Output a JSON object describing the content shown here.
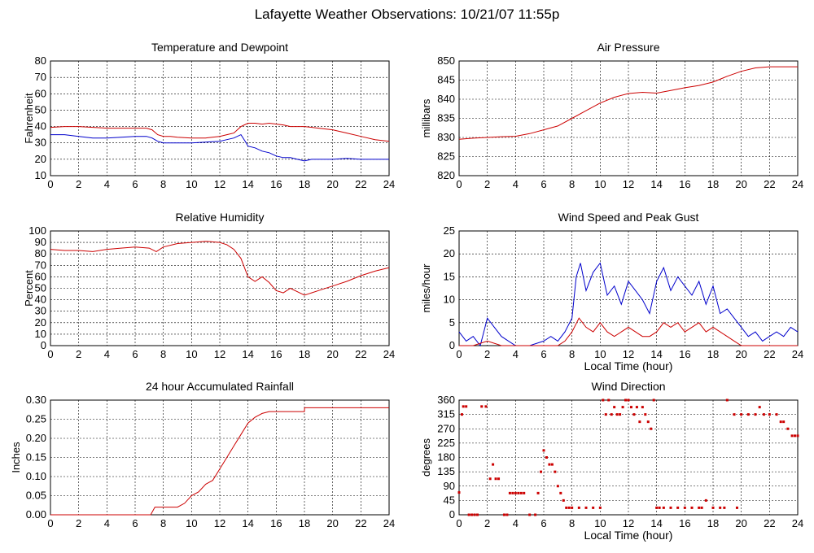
{
  "page": {
    "title": "Lafayette Weather Observations: 10/21/07 11:55p"
  },
  "chart_data": [
    {
      "id": "temp",
      "type": "line",
      "title": "Temperature and Dewpoint",
      "xlabel": "",
      "ylabel": "Fahrenheit",
      "xlim": [
        0,
        24
      ],
      "ylim": [
        10,
        80
      ],
      "xticks": [
        0,
        2,
        4,
        6,
        8,
        10,
        12,
        14,
        16,
        18,
        20,
        22,
        24
      ],
      "yticks": [
        10,
        20,
        30,
        40,
        50,
        60,
        70,
        80
      ],
      "grid": true,
      "series": [
        {
          "color": "#cc0000",
          "x": [
            0,
            1,
            2,
            3,
            4,
            5,
            6,
            6.8,
            7.2,
            7.6,
            8,
            8.5,
            9,
            10,
            11,
            12,
            12.5,
            13,
            13.5,
            14,
            14.5,
            15,
            15.5,
            16,
            16.5,
            17,
            17.5,
            18,
            19,
            20,
            21,
            22,
            23,
            24
          ],
          "y": [
            39.5,
            40,
            40,
            39.5,
            39,
            39,
            39,
            39,
            38,
            35,
            34,
            34,
            33.5,
            33,
            33,
            34,
            35,
            36,
            40,
            42,
            42,
            41.5,
            42,
            41.5,
            41,
            40,
            40,
            40,
            39,
            38,
            36,
            34,
            32,
            31
          ]
        },
        {
          "color": "#0000cc",
          "x": [
            0,
            1,
            2,
            3,
            4,
            5,
            6,
            6.8,
            7.2,
            7.6,
            8,
            9,
            10,
            11,
            12,
            12.5,
            13,
            13.5,
            13.8,
            14,
            14.5,
            15,
            15.5,
            16,
            16.5,
            17,
            17.5,
            18,
            18.5,
            19,
            20,
            21,
            22,
            23,
            24
          ],
          "y": [
            35,
            35,
            34,
            33,
            33,
            33.5,
            34,
            34,
            33,
            31,
            30,
            30,
            30,
            30.5,
            31,
            32,
            33,
            35,
            31,
            28,
            27,
            25,
            24,
            22,
            21,
            21,
            20,
            19,
            20,
            20,
            20,
            20.5,
            20,
            20,
            20
          ]
        }
      ]
    },
    {
      "id": "pressure",
      "type": "line",
      "title": "Air Pressure",
      "xlabel": "",
      "ylabel": "millibars",
      "xlim": [
        0,
        24
      ],
      "ylim": [
        820,
        850
      ],
      "xticks": [
        0,
        2,
        4,
        6,
        8,
        10,
        12,
        14,
        16,
        18,
        20,
        22,
        24
      ],
      "yticks": [
        820,
        825,
        830,
        835,
        840,
        845,
        850
      ],
      "grid": true,
      "series": [
        {
          "color": "#cc0000",
          "x": [
            0,
            1,
            2,
            3,
            4,
            5,
            6,
            7,
            8,
            9,
            10,
            11,
            12,
            13,
            14,
            15,
            16,
            17,
            18,
            19,
            20,
            21,
            22,
            23,
            24
          ],
          "y": [
            829.5,
            829.8,
            830,
            830.2,
            830.3,
            831,
            832,
            833,
            835,
            837,
            839,
            840.5,
            841.5,
            841.8,
            841.6,
            842.3,
            843,
            843.6,
            844.5,
            846,
            847.3,
            848.2,
            848.5,
            848.5,
            848.5
          ]
        }
      ]
    },
    {
      "id": "humidity",
      "type": "line",
      "title": "Relative Humidity",
      "xlabel": "",
      "ylabel": "Percent",
      "xlim": [
        0,
        24
      ],
      "ylim": [
        0,
        100
      ],
      "xticks": [
        0,
        2,
        4,
        6,
        8,
        10,
        12,
        14,
        16,
        18,
        20,
        22,
        24
      ],
      "yticks": [
        0,
        10,
        20,
        30,
        40,
        50,
        60,
        70,
        80,
        90,
        100
      ],
      "grid": true,
      "series": [
        {
          "color": "#cc0000",
          "x": [
            0,
            1,
            2,
            3,
            4,
            5,
            6,
            7,
            7.5,
            8,
            9,
            10,
            11,
            12,
            12.5,
            13,
            13.5,
            14,
            14.5,
            15,
            15.5,
            16,
            16.5,
            17,
            17.5,
            18,
            19,
            20,
            21,
            22,
            23,
            24
          ],
          "y": [
            84,
            83,
            83,
            82,
            84,
            85,
            86,
            85,
            82,
            86,
            89,
            90,
            91,
            90,
            88,
            84,
            76,
            60,
            56,
            60,
            55,
            48,
            46,
            50,
            47,
            44,
            48,
            52,
            56,
            61,
            65,
            68
          ]
        }
      ]
    },
    {
      "id": "wind",
      "type": "line",
      "title": "Wind Speed and Peak Gust",
      "xlabel": "Local Time (hour)",
      "ylabel": "miles/hour",
      "xlim": [
        0,
        24
      ],
      "ylim": [
        0,
        25
      ],
      "xticks": [
        0,
        2,
        4,
        6,
        8,
        10,
        12,
        14,
        16,
        18,
        20,
        22,
        24
      ],
      "yticks": [
        0,
        5,
        10,
        15,
        20,
        25
      ],
      "grid": true,
      "series": [
        {
          "color": "#0000cc",
          "x": [
            0,
            0.5,
            1,
            1.5,
            2,
            2.5,
            3,
            3.5,
            4,
            5,
            6,
            6.5,
            7,
            7.5,
            8,
            8.3,
            8.6,
            9,
            9.5,
            10,
            10.5,
            11,
            11.5,
            12,
            12.5,
            13,
            13.5,
            14,
            14.5,
            15,
            15.5,
            16,
            16.5,
            17,
            17.5,
            18,
            18.5,
            19,
            19.5,
            20,
            20.5,
            21,
            21.5,
            22,
            22.5,
            23,
            23.5,
            24
          ],
          "y": [
            3,
            1,
            2,
            0,
            6,
            4,
            2,
            1,
            0,
            0,
            1,
            2,
            1,
            3,
            6,
            15,
            18,
            12,
            16,
            18,
            11,
            13,
            9,
            14,
            12,
            10,
            7,
            14,
            17,
            12,
            15,
            13,
            11,
            14,
            9,
            13,
            7,
            8,
            6,
            4,
            2,
            3,
            1,
            2,
            3,
            2,
            4,
            3
          ]
        },
        {
          "color": "#cc0000",
          "x": [
            0,
            1,
            2,
            3,
            4,
            5,
            6,
            7,
            7.5,
            8,
            8.5,
            9,
            9.5,
            10,
            10.5,
            11,
            11.5,
            12,
            12.5,
            13,
            13.5,
            14,
            14.5,
            15,
            15.5,
            16,
            16.5,
            17,
            17.5,
            18,
            18.5,
            19,
            19.5,
            20,
            21,
            22,
            23,
            24
          ],
          "y": [
            0,
            0,
            1,
            0,
            0,
            0,
            0,
            0,
            1,
            3,
            6,
            4,
            3,
            5,
            3,
            2,
            3,
            4,
            3,
            2,
            2,
            3,
            5,
            4,
            5,
            3,
            4,
            5,
            3,
            4,
            3,
            2,
            1,
            0,
            0,
            0,
            0,
            0
          ]
        }
      ]
    },
    {
      "id": "rain",
      "type": "line",
      "title": "24 hour Accumulated Rainfall",
      "xlabel": "",
      "ylabel": "Inches",
      "xlim": [
        0,
        24
      ],
      "ylim": [
        0,
        0.3
      ],
      "xticks": [
        0,
        2,
        4,
        6,
        8,
        10,
        12,
        14,
        16,
        18,
        20,
        22,
        24
      ],
      "yticks": [
        0.0,
        0.05,
        0.1,
        0.15,
        0.2,
        0.25,
        0.3
      ],
      "grid": true,
      "series": [
        {
          "color": "#cc0000",
          "x": [
            0,
            7.1,
            7.4,
            9,
            9.5,
            10,
            10.5,
            11,
            11.5,
            12,
            12.5,
            13,
            13.5,
            14,
            14.5,
            15,
            15.5,
            16,
            17,
            18,
            18.01,
            20,
            22,
            24
          ],
          "y": [
            0,
            0,
            0.02,
            0.02,
            0.03,
            0.05,
            0.06,
            0.08,
            0.09,
            0.12,
            0.15,
            0.18,
            0.21,
            0.24,
            0.255,
            0.265,
            0.27,
            0.27,
            0.27,
            0.27,
            0.28,
            0.28,
            0.28,
            0.28
          ]
        }
      ]
    },
    {
      "id": "direction",
      "type": "scatter",
      "title": "Wind Direction",
      "xlabel": "Local Time (hour)",
      "ylabel": "degrees",
      "xlim": [
        0,
        24
      ],
      "ylim": [
        0,
        360
      ],
      "xticks": [
        0,
        2,
        4,
        6,
        8,
        10,
        12,
        14,
        16,
        18,
        20,
        22,
        24
      ],
      "yticks": [
        0,
        45,
        90,
        135,
        180,
        225,
        270,
        315,
        360
      ],
      "grid": true,
      "series": [
        {
          "color": "#cc0000",
          "x": [
            0,
            0.2,
            0.3,
            0.5,
            0.7,
            0.9,
            1.1,
            1.3,
            1.6,
            1.9,
            2.2,
            2.4,
            2.6,
            2.8,
            3.2,
            3.4,
            3.6,
            3.8,
            4.0,
            4.2,
            4.4,
            4.6,
            5.0,
            5.4,
            5.6,
            5.8,
            6.0,
            6.2,
            6.4,
            6.6,
            6.8,
            7.0,
            7.2,
            7.4,
            7.6,
            7.8,
            8.0,
            8.5,
            9.0,
            9.5,
            10.0,
            10.2,
            10.4,
            10.6,
            10.8,
            11.0,
            11.2,
            11.4,
            11.6,
            11.8,
            12.0,
            12.2,
            12.4,
            12.6,
            12.8,
            13.0,
            13.2,
            13.4,
            13.6,
            13.8,
            14.0,
            14.2,
            14.5,
            15.0,
            15.5,
            16.0,
            16.5,
            17.0,
            17.2,
            17.5,
            18.0,
            18.5,
            18.8,
            19.0,
            19.5,
            19.7,
            20.0,
            20.5,
            21.0,
            21.3,
            21.6,
            22.0,
            22.5,
            22.8,
            23.0,
            23.3,
            23.6,
            23.8,
            24.0
          ],
          "y": [
            70,
            315,
            340,
            340,
            0,
            0,
            0,
            0,
            340,
            340,
            113,
            158,
            113,
            113,
            0,
            0,
            68,
            68,
            68,
            68,
            68,
            68,
            0,
            0,
            68,
            135,
            202,
            180,
            158,
            158,
            135,
            90,
            68,
            45,
            22,
            22,
            22,
            22,
            22,
            22,
            22,
            360,
            315,
            360,
            315,
            338,
            315,
            315,
            338,
            360,
            360,
            338,
            315,
            338,
            292,
            338,
            315,
            292,
            270,
            360,
            22,
            22,
            22,
            22,
            22,
            22,
            22,
            22,
            22,
            45,
            22,
            22,
            22,
            360,
            315,
            22,
            315,
            315,
            315,
            338,
            315,
            315,
            315,
            292,
            292,
            270,
            248,
            248,
            248
          ]
        }
      ]
    }
  ]
}
